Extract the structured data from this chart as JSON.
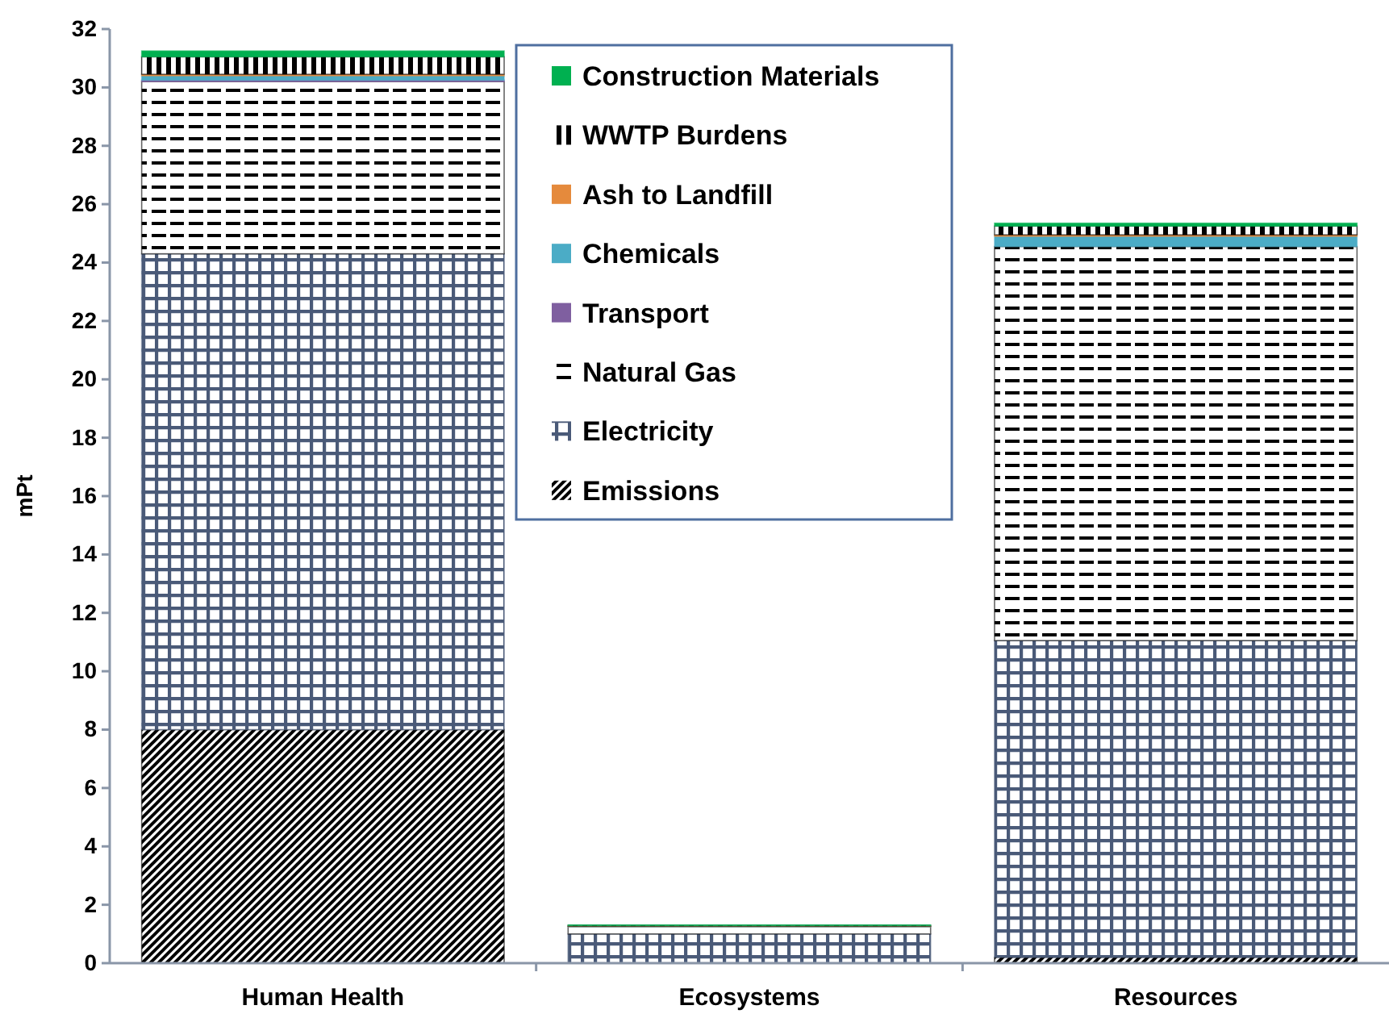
{
  "chart_data": {
    "type": "bar",
    "stacked": true,
    "ylabel": "mPt",
    "categories": [
      "Human Health",
      "Ecosystems",
      "Resources"
    ],
    "ylim": [
      0,
      32
    ],
    "yticks": [
      0,
      2,
      4,
      6,
      8,
      10,
      12,
      14,
      16,
      18,
      20,
      22,
      24,
      26,
      28,
      30,
      32
    ],
    "grid": false,
    "legend": "top",
    "series": [
      {
        "name": "Emissions",
        "color": "#000000",
        "values": [
          8.0,
          null,
          0.2
        ]
      },
      {
        "name": "Electricity",
        "color": "#4a5a78",
        "values": [
          16.3,
          1.0,
          10.85
        ]
      },
      {
        "name": "Natural Gas",
        "color": "#000000",
        "values": [
          5.9,
          0.25,
          13.5
        ]
      },
      {
        "name": "Transport",
        "color": "#7f5fa0",
        "values": [
          0.05,
          null,
          null
        ]
      },
      {
        "name": "Chemicals",
        "color": "#4bacc6",
        "values": [
          0.15,
          0.01,
          0.35
        ]
      },
      {
        "name": "Ash to Landfill",
        "color": "#e58a3c",
        "values": [
          0.05,
          0.01,
          0.05
        ]
      },
      {
        "name": "WWTP Burdens",
        "color": "#000000",
        "values": [
          0.6,
          0.02,
          0.3
        ]
      },
      {
        "name": "Construction Materials",
        "color": "#00b050",
        "values": [
          0.2,
          0.02,
          0.1
        ]
      }
    ]
  }
}
